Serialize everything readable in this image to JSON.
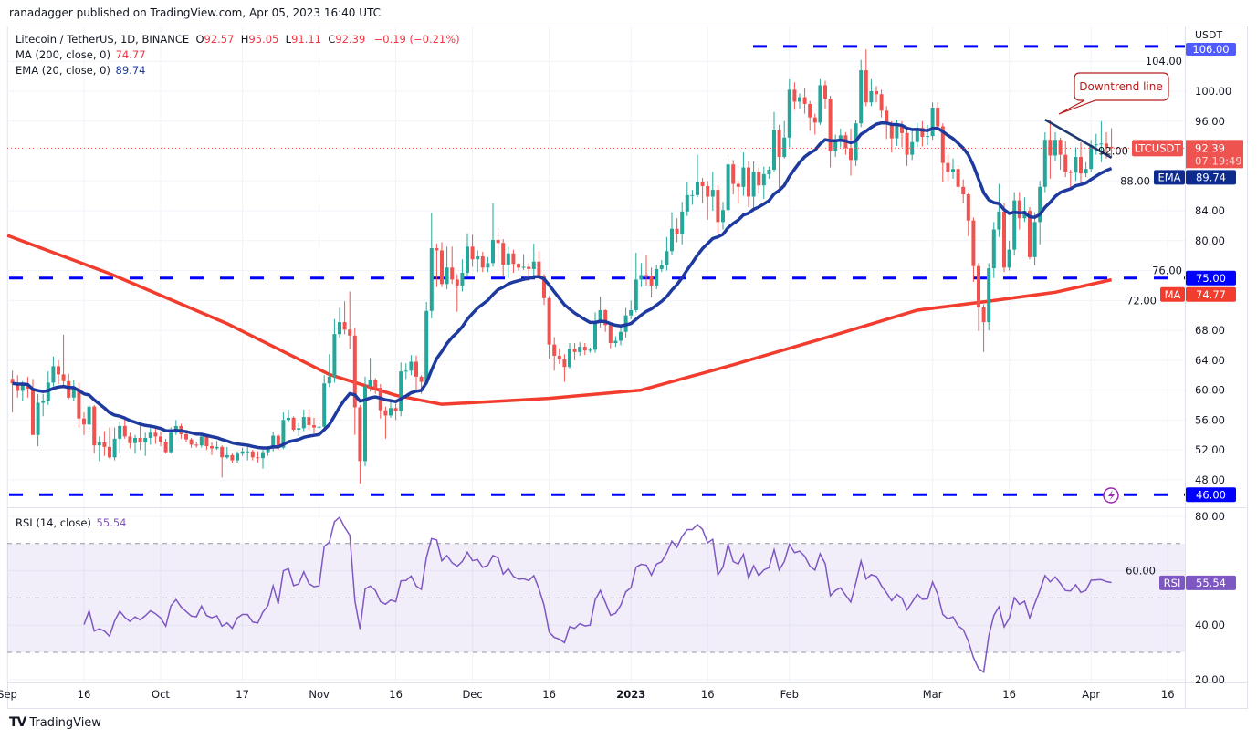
{
  "header": {
    "published": "ranadagger published on TradingView.com, Apr 05, 2023 16:40 UTC"
  },
  "legend": {
    "symbol": "Litecoin / TetherUS, 1D, BINANCE",
    "o_label": "O",
    "o": "92.57",
    "h_label": "H",
    "h": "95.05",
    "l_label": "L",
    "l": "91.11",
    "c_label": "C",
    "c": "92.39",
    "change": "−0.19 (−0.21%)",
    "ma_label": "MA (200, close, 0)",
    "ma_value": "74.77",
    "ema_label": "EMA (20, close, 0)",
    "ema_value": "89.74",
    "rsi_label": "RSI (14, close)",
    "rsi_value": "55.54"
  },
  "price_axis": {
    "unit": "USDT",
    "ticks": [
      "48.00",
      "52.00",
      "56.00",
      "60.00",
      "64.00",
      "68.00",
      "72.00",
      "76.00",
      "80.00",
      "84.00",
      "88.00",
      "92.00",
      "96.00",
      "100.00",
      "104.00"
    ],
    "badges": {
      "symbol": "LTCUSDT",
      "last": "92.39",
      "countdown": "07:19:49",
      "ema_tag": "EMA",
      "ema": "89.74",
      "ma_tag": "MA",
      "ma": "74.77",
      "level_106": "106.00",
      "level_75": "75.00",
      "level_46": "46.00"
    }
  },
  "rsi_axis": {
    "ticks": [
      "20.00",
      "40.00",
      "60.00",
      "80.00"
    ],
    "tag": "RSI",
    "value": "55.54"
  },
  "time_axis": {
    "labels": [
      {
        "text": "Sep",
        "date": "2022-09-01"
      },
      {
        "text": "16",
        "date": "2022-09-16"
      },
      {
        "text": "Oct",
        "date": "2022-10-01"
      },
      {
        "text": "17",
        "date": "2022-10-17"
      },
      {
        "text": "Nov",
        "date": "2022-11-01"
      },
      {
        "text": "16",
        "date": "2022-11-16"
      },
      {
        "text": "Dec",
        "date": "2022-12-01"
      },
      {
        "text": "16",
        "date": "2022-12-16"
      },
      {
        "text": "2023",
        "date": "2023-01-01"
      },
      {
        "text": "16",
        "date": "2023-01-16"
      },
      {
        "text": "Feb",
        "date": "2023-02-01"
      },
      {
        "text": "Mar",
        "date": "2023-03-01"
      },
      {
        "text": "16",
        "date": "2023-03-16"
      },
      {
        "text": "Apr",
        "date": "2023-04-01"
      },
      {
        "text": "16",
        "date": "2023-04-16"
      }
    ]
  },
  "annotation": {
    "text": "Downtrend line"
  },
  "branding": {
    "text": "TradingView"
  },
  "colors": {
    "up": "#26a69a",
    "down": "#ef5350",
    "ema": "#1e3a9e",
    "ma": "#f23c2e",
    "levels": "#0000ff",
    "rsi": "#7e57c2",
    "callout": "#b71c1c"
  },
  "chart_data": {
    "type": "candlestick",
    "title": "Litecoin / TetherUS, 1D, BINANCE",
    "first_date": "2022-09-02",
    "interval": "1D",
    "ylim": [
      45,
      107
    ],
    "open": [
      61.5,
      60.9,
      59.9,
      60.8,
      60.2,
      54.0,
      58.3,
      58.6,
      61.0,
      63.2,
      62.1,
      61.2,
      59.0,
      60.2,
      56.2,
      55.4,
      57.8,
      52.6,
      53.0,
      52.4,
      51.0,
      53.5,
      55.2,
      53.8,
      52.9,
      53.6,
      53.0,
      53.6,
      54.3,
      53.8,
      53.1,
      51.7,
      54.3,
      55.2,
      54.1,
      53.4,
      52.7,
      52.6,
      53.8,
      52.5,
      52.2,
      52.4,
      51.0,
      51.3,
      50.6,
      51.5,
      51.8,
      51.8,
      51.0,
      50.9,
      51.7,
      52.2,
      53.9,
      52.3,
      56.0,
      56.3,
      54.7,
      54.9,
      56.4,
      55.3,
      55.0,
      55.1,
      60.9,
      61.8,
      67.5,
      69.1,
      68.1,
      67.3,
      57.7,
      50.5,
      60.5,
      61.4,
      60.3,
      57.3,
      56.6,
      57.6,
      57.2,
      62.5,
      62.6,
      63.8,
      61.8,
      61.1,
      70.6,
      79.0,
      78.7,
      74.2,
      76.4,
      74.8,
      74.0,
      75.7,
      79.2,
      77.5,
      77.9,
      76.4,
      77.0,
      80.1,
      79.7,
      76.8,
      78.3,
      76.9,
      76.4,
      76.5,
      76.2,
      77.2,
      75.2,
      72.3,
      66.1,
      64.6,
      64.1,
      63.1,
      65.5,
      65.1,
      65.8,
      65.3,
      65.4,
      69.1,
      70.7,
      68.7,
      66.3,
      66.6,
      67.8,
      70.0,
      70.7,
      74.8,
      75.4,
      75.3,
      74.0,
      76.2,
      76.7,
      78.6,
      81.6,
      80.9,
      83.9,
      86.1,
      86.1,
      87.8,
      87.3,
      85.9,
      86.8,
      82.5,
      84.1,
      90.2,
      87.6,
      87.2,
      89.8,
      85.9,
      89.2,
      87.4,
      88.9,
      89.5,
      94.8,
      91.2,
      93.8,
      100.2,
      98.6,
      99.2,
      98.3,
      96.5,
      95.8,
      100.8,
      99.0,
      92.0,
      93.4,
      94.1,
      92.4,
      90.8,
      95.7,
      102.8,
      98.5,
      100.0,
      99.6,
      97.4,
      95.7,
      93.7,
      95.3,
      94.4,
      91.5,
      93.2,
      95.1,
      93.9,
      94.0,
      97.8,
      95.3,
      90.4,
      89.2,
      89.6,
      87.2,
      86.2,
      82.7,
      76.6,
      71.1,
      69.1,
      76.3,
      81.5,
      83.9,
      76.4,
      78.8,
      85.4,
      83.0,
      84.0,
      77.8,
      82.5,
      87.2,
      93.5,
      91.4,
      93.5,
      91.5,
      89.2,
      89.1,
      91.2,
      89.0,
      89.6,
      92.8,
      92.9,
      93.0,
      92.57
    ],
    "high": [
      62.6,
      62.0,
      61.2,
      61.8,
      61.5,
      59.5,
      59.5,
      62.5,
      64.5,
      64.0,
      67.4,
      62.2,
      61.3,
      61.0,
      57.0,
      58.5,
      58.0,
      53.8,
      54.5,
      55.0,
      55.0,
      55.8,
      56.5,
      54.3,
      54.0,
      55.5,
      54.3,
      55.0,
      55.0,
      54.5,
      53.5,
      55.0,
      56.0,
      55.5,
      54.6,
      53.6,
      53.0,
      54.0,
      54.0,
      53.0,
      53.2,
      52.6,
      52.4,
      51.5,
      51.8,
      52.3,
      52.4,
      52.0,
      51.8,
      52.0,
      52.5,
      54.4,
      54.1,
      57.0,
      57.4,
      56.5,
      55.6,
      57.4,
      57.4,
      56.3,
      55.8,
      62.0,
      64.8,
      69.5,
      71.0,
      71.9,
      73.2,
      68.3,
      58.0,
      61.8,
      64.3,
      61.6,
      60.8,
      57.8,
      58.5,
      58.2,
      63.7,
      63.6,
      64.7,
      64.6,
      62.0,
      71.8,
      83.7,
      79.6,
      79.8,
      79.2,
      79.2,
      75.5,
      77.5,
      81.0,
      80.8,
      78.7,
      78.5,
      77.8,
      85.0,
      81.7,
      80.2,
      79.2,
      78.8,
      77.0,
      78.2,
      77.0,
      79.6,
      78.6,
      75.5,
      72.6,
      67.1,
      65.6,
      64.8,
      66.3,
      66.3,
      66.4,
      66.3,
      65.7,
      70.4,
      72.5,
      70.8,
      68.8,
      67.2,
      68.5,
      71.0,
      72.0,
      78.4,
      77.0,
      78.0,
      76.4,
      76.8,
      77.4,
      80.5,
      83.8,
      83.0,
      85.2,
      87.8,
      86.8,
      91.5,
      88.4,
      88.0,
      89.2,
      87.4,
      85.2,
      91.0,
      90.8,
      88.0,
      91.8,
      90.6,
      90.6,
      89.8,
      89.9,
      89.9,
      97.2,
      95.5,
      96.0,
      101.6,
      101.2,
      99.7,
      100.5,
      98.7,
      97.0,
      101.6,
      101.4,
      99.4,
      94.2,
      95.0,
      94.5,
      95.0,
      96.1,
      104.2,
      105.6,
      101.6,
      100.7,
      100.2,
      98.0,
      96.0,
      96.2,
      96.0,
      95.0,
      94.7,
      95.8,
      96.0,
      95.5,
      98.5,
      98.5,
      95.7,
      91.5,
      91.0,
      90.1,
      88.2,
      86.5,
      83.1,
      77.0,
      71.5,
      77.0,
      82.5,
      87.6,
      85.0,
      80.0,
      86.5,
      86.5,
      85.8,
      84.5,
      83.8,
      88.0,
      94.5,
      96.1,
      94.5,
      93.8,
      93.3,
      89.5,
      92.5,
      93.2,
      90.5,
      93.5,
      94.3,
      96.0,
      94.5,
      95.05
    ],
    "low": [
      57.0,
      59.0,
      58.5,
      59.0,
      54.0,
      52.5,
      56.5,
      58.0,
      60.5,
      60.8,
      60.5,
      58.8,
      58.5,
      55.0,
      54.0,
      54.5,
      51.5,
      50.5,
      51.2,
      50.8,
      50.6,
      51.5,
      53.5,
      52.2,
      51.5,
      52.0,
      51.2,
      52.7,
      52.8,
      52.5,
      51.5,
      51.5,
      54.0,
      53.5,
      53.0,
      52.3,
      52.3,
      52.3,
      52.0,
      51.3,
      52.0,
      48.3,
      50.8,
      50.3,
      50.3,
      51.2,
      50.6,
      50.6,
      50.3,
      49.5,
      51.2,
      51.8,
      52.0,
      52.1,
      55.8,
      54.5,
      53.8,
      54.5,
      54.6,
      54.2,
      54.6,
      54.8,
      60.4,
      61.0,
      67.0,
      67.5,
      65.5,
      54.0,
      47.5,
      49.8,
      59.8,
      59.5,
      56.2,
      53.5,
      56.3,
      56.0,
      56.5,
      61.5,
      62.0,
      60.0,
      59.5,
      60.8,
      69.6,
      73.8,
      73.8,
      73.5,
      74.2,
      70.5,
      73.2,
      75.3,
      76.5,
      75.8,
      75.8,
      75.8,
      76.5,
      76.5,
      75.3,
      75.0,
      75.7,
      76.0,
      76.1,
      74.6,
      74.9,
      74.9,
      71.4,
      64.2,
      62.6,
      63.5,
      61.1,
      62.9,
      64.0,
      64.6,
      64.7,
      65.0,
      65.0,
      68.4,
      67.8,
      65.6,
      65.8,
      66.0,
      67.0,
      69.5,
      70.4,
      73.8,
      74.0,
      72.4,
      73.5,
      75.8,
      76.0,
      78.0,
      79.8,
      79.5,
      83.3,
      84.8,
      85.8,
      85.0,
      82.8,
      84.0,
      81.0,
      81.5,
      83.7,
      86.2,
      85.0,
      86.0,
      84.5,
      84.0,
      86.3,
      85.6,
      88.3,
      89.2,
      86.5,
      91.0,
      92.5,
      97.5,
      97.6,
      97.0,
      94.7,
      94.2,
      95.5,
      97.6,
      89.8,
      91.2,
      92.5,
      91.5,
      88.7,
      90.0,
      95.2,
      98.0,
      98.0,
      98.5,
      96.5,
      93.6,
      91.8,
      92.7,
      92.5,
      90.0,
      90.8,
      92.5,
      92.6,
      92.8,
      93.5,
      94.8,
      87.8,
      88.0,
      88.3,
      86.5,
      85.0,
      80.6,
      74.5,
      67.9,
      65.1,
      68.0,
      75.0,
      80.5,
      75.8,
      76.0,
      78.0,
      81.5,
      82.5,
      77.5,
      76.7,
      79.5,
      86.5,
      88.3,
      90.6,
      89.5,
      88.5,
      86.8,
      88.0,
      87.3,
      88.5,
      89.2,
      91.5,
      90.5,
      91.0,
      91.11
    ],
    "close": [
      60.9,
      59.9,
      60.8,
      60.2,
      54.0,
      58.3,
      58.6,
      61.0,
      63.2,
      62.1,
      61.2,
      59.0,
      60.2,
      56.2,
      55.4,
      57.8,
      52.6,
      53.0,
      52.4,
      51.0,
      53.5,
      55.2,
      53.8,
      52.9,
      53.6,
      53.0,
      53.6,
      54.3,
      53.8,
      53.1,
      51.7,
      54.3,
      55.2,
      54.1,
      53.4,
      52.7,
      52.6,
      53.8,
      52.5,
      52.2,
      52.4,
      51.0,
      51.3,
      50.6,
      51.5,
      51.8,
      51.8,
      51.0,
      50.9,
      51.7,
      52.2,
      53.9,
      52.3,
      56.0,
      56.3,
      54.7,
      54.9,
      56.4,
      55.3,
      55.0,
      55.1,
      60.9,
      61.8,
      67.5,
      69.1,
      68.1,
      67.3,
      57.7,
      50.5,
      60.5,
      61.4,
      60.3,
      57.3,
      56.6,
      57.6,
      57.2,
      62.5,
      62.6,
      63.8,
      61.8,
      61.1,
      70.6,
      79.0,
      78.7,
      74.2,
      76.4,
      74.8,
      74.0,
      75.7,
      79.2,
      77.5,
      77.9,
      76.4,
      77.0,
      80.1,
      79.7,
      76.8,
      78.3,
      76.9,
      76.4,
      76.5,
      76.2,
      77.2,
      75.2,
      72.3,
      66.1,
      64.6,
      64.1,
      63.1,
      65.5,
      65.1,
      65.8,
      65.3,
      65.4,
      69.1,
      70.7,
      68.7,
      66.3,
      66.6,
      67.8,
      70.0,
      70.7,
      74.8,
      75.4,
      75.3,
      74.0,
      76.2,
      76.7,
      78.6,
      81.6,
      80.9,
      83.9,
      86.1,
      86.1,
      87.8,
      87.3,
      85.9,
      86.8,
      82.5,
      84.1,
      90.2,
      87.6,
      87.2,
      89.8,
      85.9,
      89.2,
      87.4,
      88.9,
      89.5,
      94.8,
      91.2,
      93.8,
      100.2,
      98.6,
      99.2,
      98.3,
      96.5,
      95.8,
      100.8,
      99.0,
      92.0,
      93.4,
      94.1,
      92.4,
      90.8,
      95.7,
      102.8,
      98.5,
      100.0,
      99.6,
      97.4,
      95.7,
      93.7,
      95.3,
      94.4,
      91.5,
      93.2,
      95.1,
      93.9,
      94.0,
      97.8,
      95.3,
      90.4,
      89.2,
      89.6,
      87.2,
      86.2,
      82.7,
      76.6,
      71.1,
      69.1,
      76.3,
      81.5,
      83.9,
      76.4,
      78.8,
      85.4,
      83.0,
      84.0,
      77.8,
      82.5,
      87.2,
      93.5,
      91.4,
      93.5,
      91.5,
      89.2,
      89.1,
      91.2,
      89.0,
      89.6,
      92.8,
      92.9,
      93.0,
      92.57,
      92.39
    ],
    "ma200": [
      [
        "2022-09-01",
        80.7
      ],
      [
        "2022-09-21",
        75.6
      ],
      [
        "2022-10-14",
        68.9
      ],
      [
        "2022-11-03",
        62.1
      ],
      [
        "2022-11-16",
        59.3
      ],
      [
        "2022-11-25",
        58.1
      ],
      [
        "2022-12-16",
        58.9
      ],
      [
        "2023-01-03",
        60.0
      ],
      [
        "2023-01-21",
        63.4
      ],
      [
        "2023-02-08",
        67.0
      ],
      [
        "2023-02-26",
        70.7
      ],
      [
        "2023-03-12",
        71.9
      ],
      [
        "2023-03-25",
        73.1
      ],
      [
        "2023-04-05",
        74.77
      ]
    ],
    "ema_period": 20,
    "rsi_period": 14,
    "levels": [
      106,
      75,
      46
    ],
    "downtrend_line": [
      [
        "2023-03-23",
        96.2
      ],
      [
        "2023-04-05",
        91.1
      ]
    ],
    "rsi_bands": [
      30,
      50,
      70
    ],
    "rsi_ylim": [
      17,
      83
    ]
  }
}
